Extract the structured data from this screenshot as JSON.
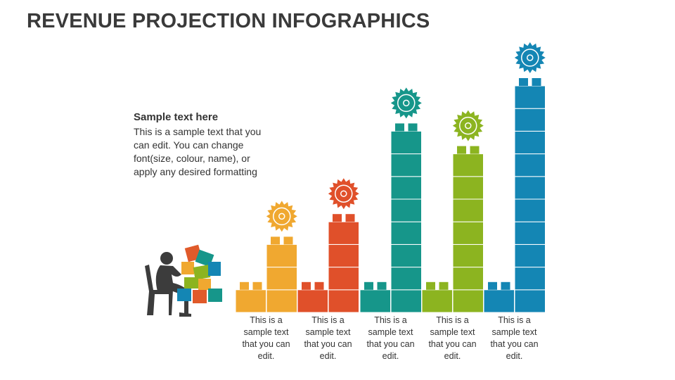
{
  "header": {
    "title": "REVENUE PROJECTION INFOGRAPHICS"
  },
  "text_box": {
    "heading": "Sample text here",
    "body": "This is a sample text that you can edit. You can change font(size, colour, name), or apply any desired formatting"
  },
  "columns": [
    {
      "caption": "This is a sample text that you can edit."
    },
    {
      "caption": "This is a sample text that you can edit."
    },
    {
      "caption": "This is a sample text that you can edit."
    },
    {
      "caption": "This is a sample text that you can edit."
    },
    {
      "caption": "This is a sample text that you can edit."
    }
  ]
}
